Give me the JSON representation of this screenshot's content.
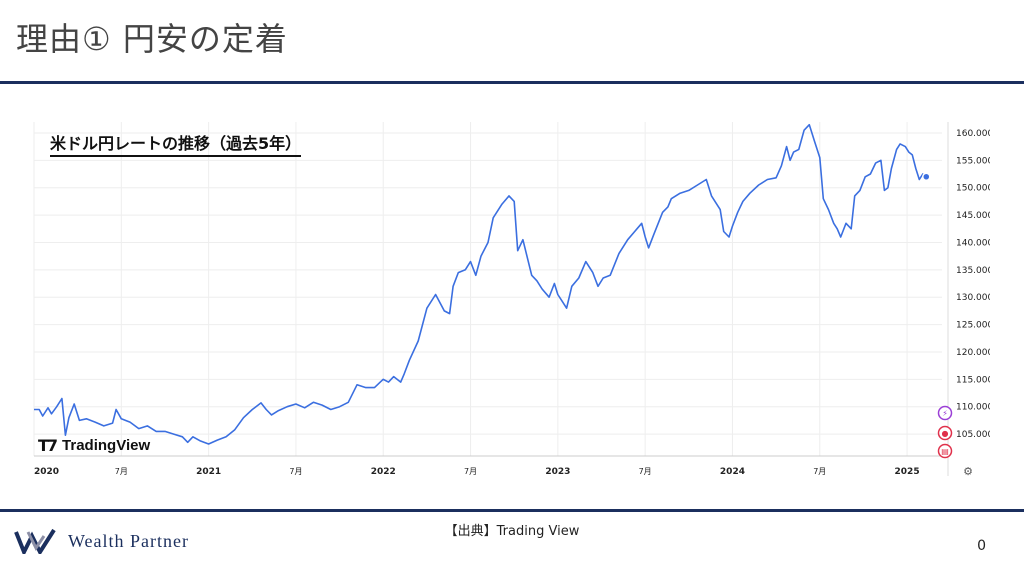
{
  "slide": {
    "title": "理由① 円安の定着",
    "source": "【出典】Trading View",
    "page_number": "0",
    "brand_name": "Wealth Partner"
  },
  "chart_heading": "米ドル円レートの推移（過去5年）",
  "watermark": "TradingView",
  "colors": {
    "line": "#3b6fe0",
    "rule": "#1b2f5e",
    "grid": "#eeeeee"
  },
  "chart_data": {
    "type": "line",
    "title": "米ドル円レートの推移（過去5年）",
    "xlabel": "",
    "ylabel": "",
    "ylim": [
      101,
      162
    ],
    "xlim": [
      0,
      5.2
    ],
    "grid": true,
    "y_ticks": [
      "105.000",
      "110.000",
      "115.000",
      "120.000",
      "125.000",
      "130.000",
      "135.000",
      "140.000",
      "145.000",
      "150.000",
      "155.000",
      "160.000"
    ],
    "y_tick_values": [
      105,
      110,
      115,
      120,
      125,
      130,
      135,
      140,
      145,
      150,
      155,
      160
    ],
    "x_ticks": [
      {
        "t": 0.0,
        "label": "2020"
      },
      {
        "t": 0.5,
        "label": "7月"
      },
      {
        "t": 1.0,
        "label": "2021"
      },
      {
        "t": 1.5,
        "label": "7月"
      },
      {
        "t": 2.0,
        "label": "2022"
      },
      {
        "t": 2.5,
        "label": "7月"
      },
      {
        "t": 3.0,
        "label": "2023"
      },
      {
        "t": 3.5,
        "label": "7月"
      },
      {
        "t": 4.0,
        "label": "2024"
      },
      {
        "t": 4.5,
        "label": "7月"
      },
      {
        "t": 5.0,
        "label": "2025"
      }
    ],
    "series": [
      {
        "values": [
          [
            0.0,
            109.5
          ],
          [
            0.03,
            109.5
          ],
          [
            0.05,
            108.3
          ],
          [
            0.08,
            109.8
          ],
          [
            0.1,
            108.7
          ],
          [
            0.13,
            110.0
          ],
          [
            0.16,
            111.5
          ],
          [
            0.18,
            104.8
          ],
          [
            0.2,
            108.0
          ],
          [
            0.23,
            110.5
          ],
          [
            0.26,
            107.5
          ],
          [
            0.3,
            107.8
          ],
          [
            0.35,
            107.2
          ],
          [
            0.4,
            106.5
          ],
          [
            0.45,
            107.0
          ],
          [
            0.47,
            109.5
          ],
          [
            0.5,
            107.8
          ],
          [
            0.55,
            107.2
          ],
          [
            0.6,
            106.0
          ],
          [
            0.65,
            106.5
          ],
          [
            0.7,
            105.5
          ],
          [
            0.75,
            105.5
          ],
          [
            0.8,
            105.0
          ],
          [
            0.85,
            104.5
          ],
          [
            0.88,
            103.5
          ],
          [
            0.91,
            104.5
          ],
          [
            0.95,
            103.8
          ],
          [
            1.0,
            103.2
          ],
          [
            1.05,
            103.9
          ],
          [
            1.1,
            104.5
          ],
          [
            1.15,
            105.8
          ],
          [
            1.2,
            108.0
          ],
          [
            1.25,
            109.5
          ],
          [
            1.3,
            110.7
          ],
          [
            1.33,
            109.5
          ],
          [
            1.36,
            108.5
          ],
          [
            1.4,
            109.3
          ],
          [
            1.45,
            110.0
          ],
          [
            1.5,
            110.5
          ],
          [
            1.55,
            109.8
          ],
          [
            1.6,
            110.8
          ],
          [
            1.65,
            110.3
          ],
          [
            1.7,
            109.5
          ],
          [
            1.75,
            110.0
          ],
          [
            1.8,
            110.8
          ],
          [
            1.85,
            114.0
          ],
          [
            1.9,
            113.5
          ],
          [
            1.95,
            113.5
          ],
          [
            2.0,
            115.0
          ],
          [
            2.03,
            114.5
          ],
          [
            2.06,
            115.5
          ],
          [
            2.1,
            114.5
          ],
          [
            2.12,
            116.0
          ],
          [
            2.15,
            118.5
          ],
          [
            2.2,
            122.0
          ],
          [
            2.25,
            128.0
          ],
          [
            2.3,
            130.5
          ],
          [
            2.35,
            127.5
          ],
          [
            2.38,
            127.0
          ],
          [
            2.4,
            132.0
          ],
          [
            2.43,
            134.5
          ],
          [
            2.47,
            135.0
          ],
          [
            2.5,
            136.5
          ],
          [
            2.53,
            134.0
          ],
          [
            2.56,
            137.5
          ],
          [
            2.6,
            140.0
          ],
          [
            2.63,
            144.5
          ],
          [
            2.68,
            147.0
          ],
          [
            2.72,
            148.5
          ],
          [
            2.75,
            147.5
          ],
          [
            2.77,
            138.5
          ],
          [
            2.8,
            140.5
          ],
          [
            2.85,
            134.0
          ],
          [
            2.88,
            133.0
          ],
          [
            2.91,
            131.5
          ],
          [
            2.95,
            130.0
          ],
          [
            2.98,
            132.5
          ],
          [
            3.0,
            130.5
          ],
          [
            3.03,
            129.0
          ],
          [
            3.05,
            128.0
          ],
          [
            3.08,
            132.0
          ],
          [
            3.12,
            133.5
          ],
          [
            3.16,
            136.5
          ],
          [
            3.2,
            134.5
          ],
          [
            3.23,
            132.0
          ],
          [
            3.26,
            133.5
          ],
          [
            3.3,
            134.0
          ],
          [
            3.35,
            138.0
          ],
          [
            3.4,
            140.5
          ],
          [
            3.44,
            142.0
          ],
          [
            3.48,
            143.5
          ],
          [
            3.5,
            141.0
          ],
          [
            3.52,
            139.0
          ],
          [
            3.55,
            141.5
          ],
          [
            3.6,
            145.5
          ],
          [
            3.63,
            146.5
          ],
          [
            3.65,
            148.0
          ],
          [
            3.7,
            149.0
          ],
          [
            3.75,
            149.5
          ],
          [
            3.8,
            150.5
          ],
          [
            3.85,
            151.5
          ],
          [
            3.88,
            148.5
          ],
          [
            3.9,
            147.5
          ],
          [
            3.93,
            146.0
          ],
          [
            3.95,
            142.0
          ],
          [
            3.98,
            141.0
          ],
          [
            4.0,
            143.0
          ],
          [
            4.03,
            145.5
          ],
          [
            4.06,
            147.5
          ],
          [
            4.1,
            149.0
          ],
          [
            4.15,
            150.5
          ],
          [
            4.2,
            151.5
          ],
          [
            4.25,
            151.8
          ],
          [
            4.28,
            154.0
          ],
          [
            4.31,
            157.5
          ],
          [
            4.33,
            155.0
          ],
          [
            4.35,
            156.5
          ],
          [
            4.38,
            157.0
          ],
          [
            4.41,
            160.5
          ],
          [
            4.44,
            161.5
          ],
          [
            4.47,
            158.5
          ],
          [
            4.5,
            155.5
          ],
          [
            4.52,
            148.0
          ],
          [
            4.55,
            146.0
          ],
          [
            4.58,
            143.5
          ],
          [
            4.6,
            142.5
          ],
          [
            4.62,
            141.0
          ],
          [
            4.65,
            143.5
          ],
          [
            4.68,
            142.5
          ],
          [
            4.7,
            148.5
          ],
          [
            4.73,
            149.5
          ],
          [
            4.76,
            152.0
          ],
          [
            4.79,
            152.5
          ],
          [
            4.82,
            154.5
          ],
          [
            4.85,
            155.0
          ],
          [
            4.87,
            149.5
          ],
          [
            4.89,
            150.0
          ],
          [
            4.91,
            153.5
          ],
          [
            4.94,
            157.0
          ],
          [
            4.96,
            158.0
          ],
          [
            4.99,
            157.5
          ],
          [
            5.01,
            156.5
          ],
          [
            5.03,
            156.0
          ],
          [
            5.05,
            153.5
          ],
          [
            5.07,
            151.5
          ],
          [
            5.09,
            152.5
          ],
          [
            5.11,
            152.0
          ]
        ]
      }
    ]
  }
}
